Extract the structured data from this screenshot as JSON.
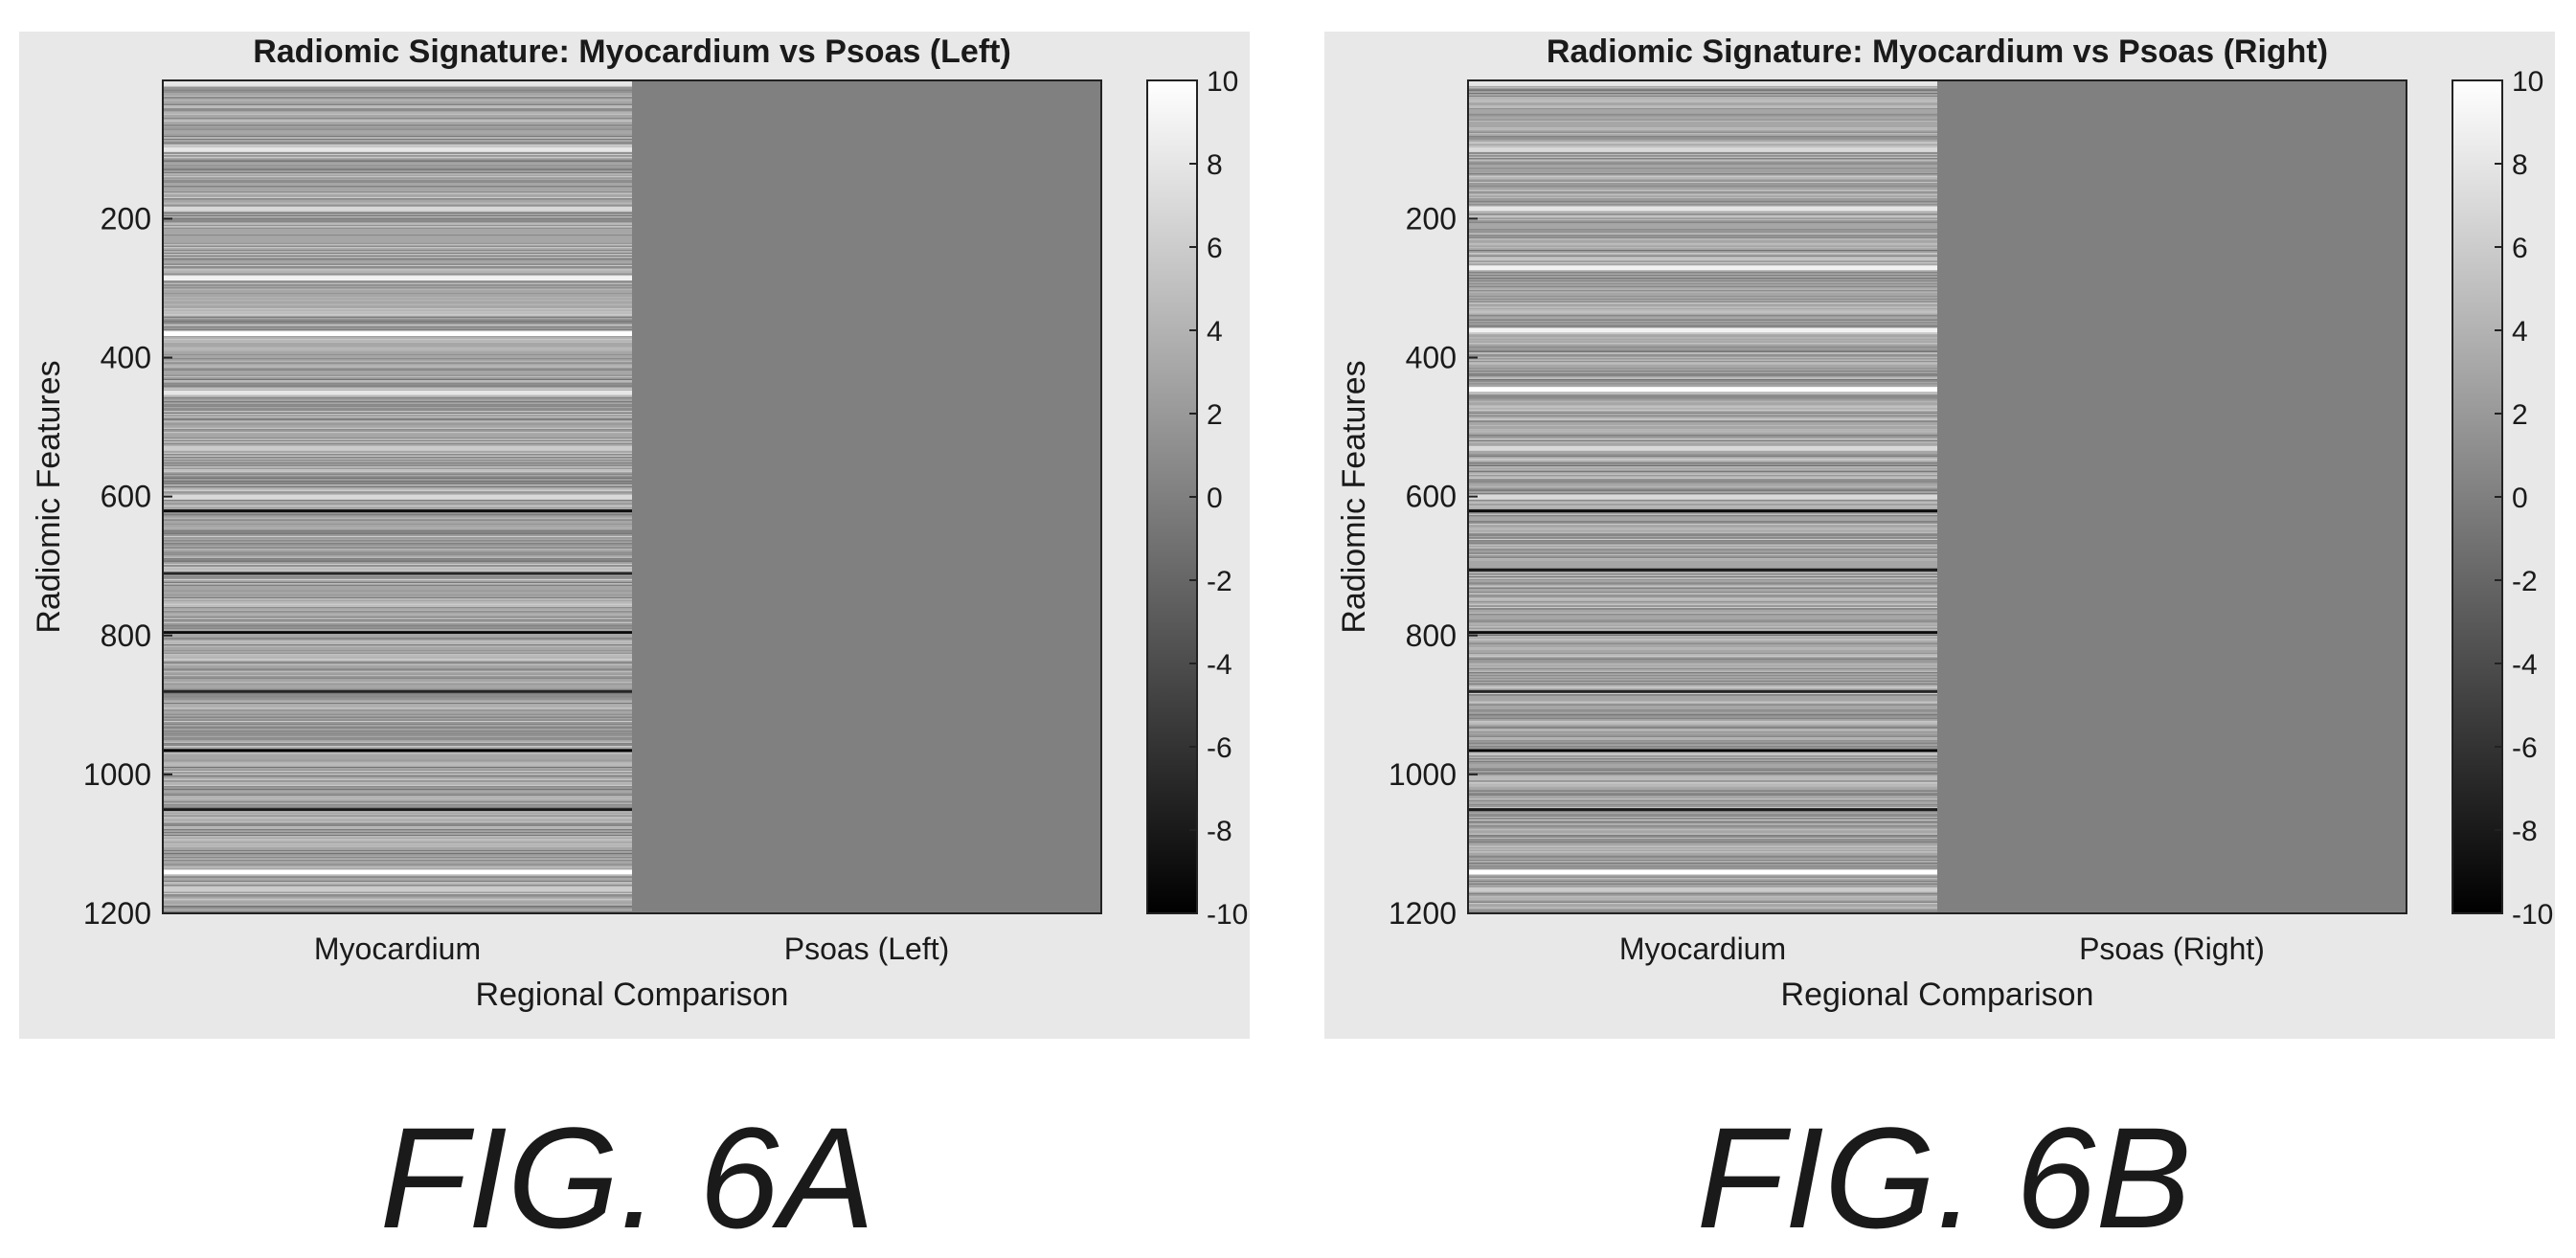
{
  "figures": [
    {
      "caption": "FIG. 6A"
    },
    {
      "caption": "FIG. 6B"
    }
  ],
  "colors": {
    "panel_background": "#e8e8e8",
    "neutral_cell": "#8a8a8a",
    "high": "#ffffff",
    "low": "#000000",
    "text": "#1a1a1a"
  },
  "chart_data": [
    {
      "type": "heatmap",
      "title": "Radiomic Signature: Myocardium vs Psoas (Left)",
      "xlabel": "Regional Comparison",
      "ylabel": "Radiomic Features",
      "categories": [
        "Myocardium",
        "Psoas (Left)"
      ],
      "ylim": [
        1,
        1200
      ],
      "y_direction": "reversed",
      "y_ticks": [
        "200",
        "400",
        "600",
        "800",
        "1000",
        "1200"
      ],
      "colorbar": {
        "limits": [
          -10,
          10
        ],
        "ticks": [
          "10",
          "8",
          "6",
          "4",
          "2",
          "0",
          "-2",
          "-4",
          "-6",
          "-8",
          "-10"
        ],
        "colormap": "gray"
      },
      "series": [
        {
          "name": "Myocardium",
          "base_value": 3,
          "high_bands": [
            [
              5,
              8
            ],
            [
              100,
              8
            ],
            [
              185,
              7
            ],
            [
              285,
              9
            ],
            [
              365,
              10
            ],
            [
              450,
              8
            ],
            [
              530,
              6
            ],
            [
              600,
              7
            ],
            [
              1140,
              10
            ],
            [
              1165,
              6
            ]
          ],
          "low_bands": [
            [
              620,
              -9
            ],
            [
              710,
              -7
            ],
            [
              795,
              -9
            ],
            [
              880,
              -7
            ],
            [
              965,
              -10
            ],
            [
              1050,
              -8
            ]
          ]
        },
        {
          "name": "Psoas (Left)",
          "base_value": 0
        }
      ]
    },
    {
      "type": "heatmap",
      "title": "Radiomic Signature: Myocardium vs Psoas (Right)",
      "xlabel": "Regional Comparison",
      "ylabel": "Radiomic Features",
      "categories": [
        "Myocardium",
        "Psoas (Right)"
      ],
      "ylim": [
        1,
        1200
      ],
      "y_direction": "reversed",
      "y_ticks": [
        "200",
        "400",
        "600",
        "800",
        "1000",
        "1200"
      ],
      "colorbar": {
        "limits": [
          -10,
          10
        ],
        "ticks": [
          "10",
          "8",
          "6",
          "4",
          "2",
          "0",
          "-2",
          "-4",
          "-6",
          "-8",
          "-10"
        ],
        "colormap": "gray"
      },
      "series": [
        {
          "name": "Myocardium",
          "base_value": 3,
          "high_bands": [
            [
              5,
              8
            ],
            [
              100,
              7
            ],
            [
              185,
              8
            ],
            [
              270,
              9
            ],
            [
              360,
              9
            ],
            [
              445,
              10
            ],
            [
              530,
              7
            ],
            [
              600,
              7
            ],
            [
              1140,
              10
            ],
            [
              1165,
              6
            ]
          ],
          "low_bands": [
            [
              620,
              -9
            ],
            [
              705,
              -8
            ],
            [
              795,
              -9
            ],
            [
              880,
              -7
            ],
            [
              965,
              -10
            ],
            [
              1050,
              -8
            ]
          ]
        },
        {
          "name": "Psoas (Right)",
          "base_value": 0
        }
      ]
    }
  ]
}
